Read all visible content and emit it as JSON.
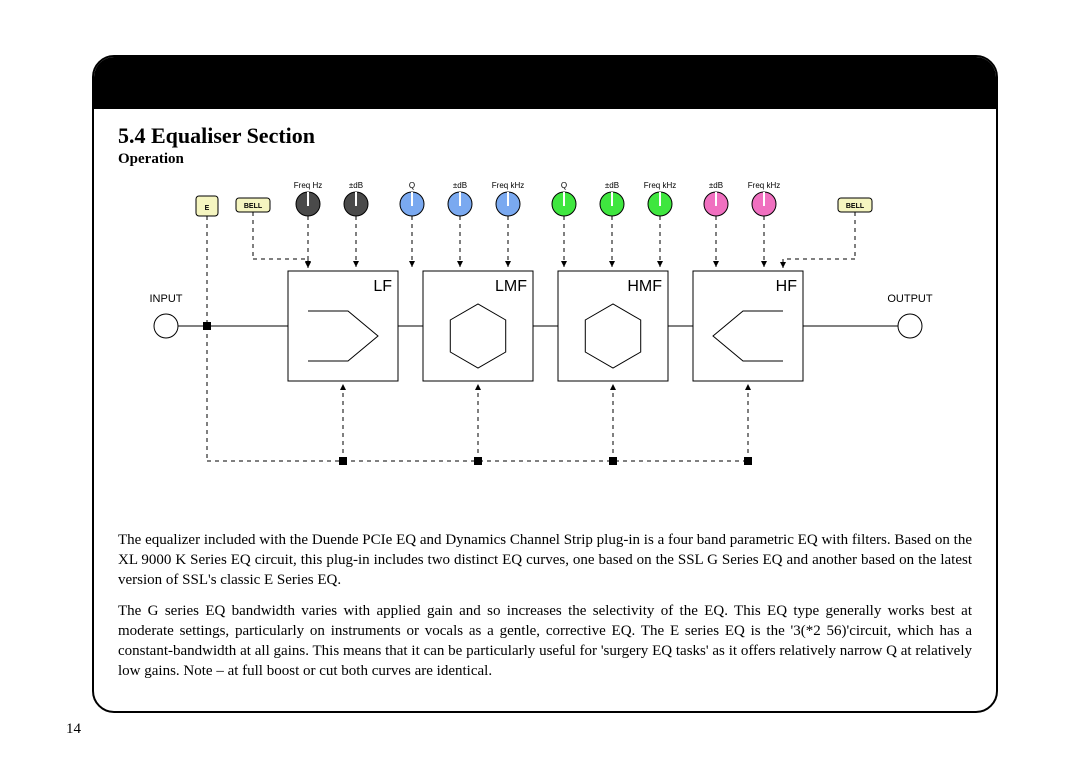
{
  "section_title": "5.4 Equaliser Section",
  "subtitle": "Operation",
  "page_number": "14",
  "diagram": {
    "background": "#ffffff",
    "stroke": "#000000",
    "io_circle_stroke": "#000000",
    "io_circle_fill": "#ffffff",
    "e_button": {
      "label": "E",
      "fill": "#f5f5c0",
      "stroke": "#000000"
    },
    "bell_left": {
      "label": "BELL",
      "fill": "#f5f5c0",
      "stroke": "#000000"
    },
    "bell_right": {
      "label": "BELL",
      "fill": "#f5f5c0",
      "stroke": "#000000"
    },
    "input_label": "INPUT",
    "output_label": "OUTPUT",
    "bands": [
      {
        "name": "LF",
        "knobs": [
          {
            "label": "Freq Hz",
            "fill": "#4a4a4a"
          },
          {
            "label": "±dB",
            "fill": "#4a4a4a"
          }
        ],
        "shape": "shelf-low"
      },
      {
        "name": "LMF",
        "knobs": [
          {
            "label": "Q",
            "fill": "#7aa9f0"
          },
          {
            "label": "±dB",
            "fill": "#7aa9f0"
          },
          {
            "label": "Freq kHz",
            "fill": "#7aa9f0"
          }
        ],
        "shape": "peak"
      },
      {
        "name": "HMF",
        "knobs": [
          {
            "label": "Q",
            "fill": "#3fe63f"
          },
          {
            "label": "±dB",
            "fill": "#3fe63f"
          },
          {
            "label": "Freq kHz",
            "fill": "#3fe63f"
          }
        ],
        "shape": "peak"
      },
      {
        "name": "HF",
        "knobs": [
          {
            "label": "±dB",
            "fill": "#f070c0"
          },
          {
            "label": "Freq kHz",
            "fill": "#f070c0"
          }
        ],
        "shape": "shelf-high"
      }
    ],
    "knob_radius": 12,
    "block_size": 110,
    "dash": "4,4"
  },
  "paragraphs": [
    "The equalizer included with the Duende PCIe EQ and Dynamics Channel Strip plug-in is a four band parametric EQ with filters. Based on the XL 9000 K Series EQ circuit, this plug-in includes two distinct EQ curves, one based on the SSL G Series EQ and another based on the latest version of SSL's classic E Series EQ.",
    "The G series EQ bandwidth varies with applied gain and so increases the selectivity of the EQ. This EQ type generally works best at moderate settings, particularly on instruments or vocals as a gentle, corrective EQ. The E series EQ is the '3(*2 56)'circuit, which has a constant-bandwidth at all gains. This means that it can be particularly useful for 'surgery EQ tasks' as it offers relatively narrow Q at relatively low gains. Note – at full boost or cut both curves are identical."
  ]
}
